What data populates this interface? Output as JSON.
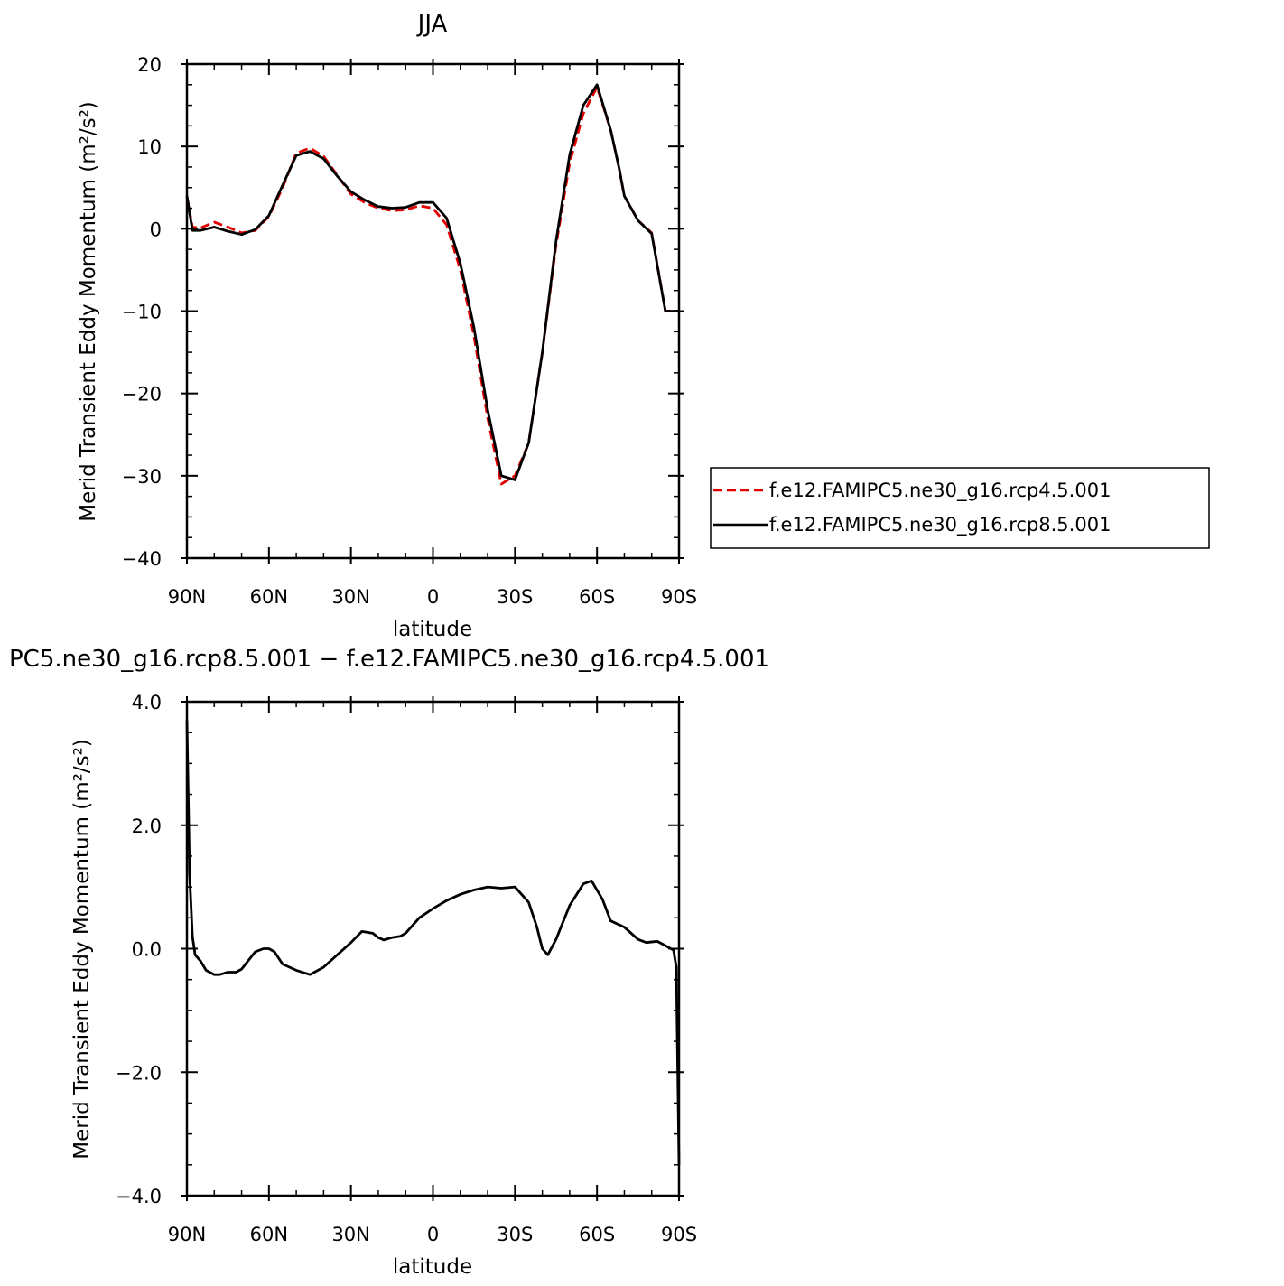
{
  "chart_data": [
    {
      "type": "line",
      "title": "JJA",
      "xlabel": "latitude",
      "ylabel": "Merid Transient Eddy Momentum (m²/s²)",
      "xlim": [
        90,
        -90
      ],
      "ylim": [
        -40,
        20
      ],
      "x_ticks": [
        90,
        60,
        30,
        0,
        -30,
        -60,
        -90
      ],
      "x_tick_labels": [
        "90N",
        "60N",
        "30N",
        "0",
        "30S",
        "60S",
        "90S"
      ],
      "y_ticks": [
        -40,
        -30,
        -20,
        -10,
        0,
        10,
        20
      ],
      "y_tick_labels": [
        "−40",
        "−30",
        "−20",
        "−10",
        "0",
        "10",
        "20"
      ],
      "legend_position": "right",
      "series": [
        {
          "name": "f.e12.FAMIPC5.ne30_g16.rcp4.5.001",
          "color": "#e00000",
          "dash": "dashed",
          "x": [
            90,
            88,
            85,
            80,
            75,
            70,
            65,
            60,
            55,
            50,
            45,
            40,
            35,
            30,
            25,
            20,
            15,
            10,
            5,
            0,
            -5,
            -10,
            -15,
            -20,
            -25,
            -30,
            -35,
            -40,
            -45,
            -50,
            -55,
            -60,
            -65,
            -68,
            -70,
            -75,
            -80,
            -85,
            -88,
            -90
          ],
          "y": [
            4,
            0.2,
            0.1,
            0.8,
            0.2,
            -0.5,
            -0.2,
            1.5,
            5,
            9.2,
            9.8,
            8.8,
            6.5,
            4.2,
            3.2,
            2.5,
            2.2,
            2.3,
            2.8,
            2.5,
            0.5,
            -5,
            -13,
            -23,
            -31,
            -30,
            -26,
            -15,
            -2,
            8,
            14,
            17.2,
            12,
            7.5,
            4,
            1,
            -0.5,
            -10,
            -10,
            -10
          ]
        },
        {
          "name": "f.e12.FAMIPC5.ne30_g16.rcp8.5.001",
          "color": "#000000",
          "dash": "solid",
          "x": [
            90,
            88,
            85,
            80,
            75,
            70,
            65,
            60,
            55,
            50,
            45,
            40,
            35,
            30,
            25,
            20,
            15,
            10,
            5,
            0,
            -5,
            -10,
            -15,
            -20,
            -25,
            -30,
            -35,
            -40,
            -45,
            -50,
            -55,
            -60,
            -65,
            -68,
            -70,
            -75,
            -80,
            -85,
            -88,
            -90
          ],
          "y": [
            4,
            -0.2,
            -0.2,
            0.2,
            -0.3,
            -0.7,
            -0.1,
            1.6,
            5.3,
            8.9,
            9.4,
            8.5,
            6.4,
            4.5,
            3.5,
            2.7,
            2.5,
            2.6,
            3.2,
            3.2,
            1.3,
            -4.2,
            -12,
            -22,
            -30,
            -30.5,
            -26,
            -15,
            -1.5,
            9,
            15,
            17.5,
            12,
            7.5,
            4,
            1,
            -0.6,
            -10,
            -10,
            -10
          ]
        }
      ]
    },
    {
      "type": "line",
      "title": "PC5.ne30_g16.rcp8.5.001 − f.e12.FAMIPC5.ne30_g16.rcp4.5.001",
      "xlabel": "latitude",
      "ylabel": "Merid Transient Eddy Momentum (m²/s²)",
      "xlim": [
        90,
        -90
      ],
      "ylim": [
        -4,
        4
      ],
      "x_ticks": [
        90,
        60,
        30,
        0,
        -30,
        -60,
        -90
      ],
      "x_tick_labels": [
        "90N",
        "60N",
        "30N",
        "0",
        "30S",
        "60S",
        "90S"
      ],
      "y_ticks": [
        -4,
        -2,
        0,
        2,
        4
      ],
      "y_tick_labels": [
        "−4.0",
        "−2.0",
        "0.0",
        "2.0",
        "4.0"
      ],
      "series": [
        {
          "color": "#000000",
          "dash": "solid",
          "x": [
            90,
            89,
            88,
            87,
            85,
            83,
            80,
            78,
            75,
            72,
            70,
            65,
            62,
            60,
            58,
            55,
            50,
            45,
            40,
            35,
            30,
            26,
            22,
            20,
            18,
            15,
            12,
            10,
            5,
            0,
            -5,
            -10,
            -15,
            -20,
            -25,
            -30,
            -35,
            -38,
            -40,
            -42,
            -45,
            -50,
            -55,
            -58,
            -62,
            -65,
            -70,
            -75,
            -78,
            -82,
            -85,
            -87,
            -88,
            -89,
            -90
          ],
          "y": [
            3.7,
            1.2,
            0.2,
            -0.1,
            -0.2,
            -0.35,
            -0.42,
            -0.42,
            -0.38,
            -0.38,
            -0.33,
            -0.05,
            0.0,
            0.0,
            -0.05,
            -0.25,
            -0.35,
            -0.42,
            -0.3,
            -0.1,
            0.1,
            0.28,
            0.25,
            0.18,
            0.14,
            0.18,
            0.2,
            0.25,
            0.5,
            0.65,
            0.78,
            0.88,
            0.95,
            1.0,
            0.98,
            1.0,
            0.75,
            0.35,
            0.0,
            -0.1,
            0.15,
            0.7,
            1.05,
            1.1,
            0.8,
            0.45,
            0.35,
            0.15,
            0.1,
            0.12,
            0.05,
            0.0,
            -0.02,
            -0.3,
            -3.5
          ]
        }
      ]
    }
  ]
}
